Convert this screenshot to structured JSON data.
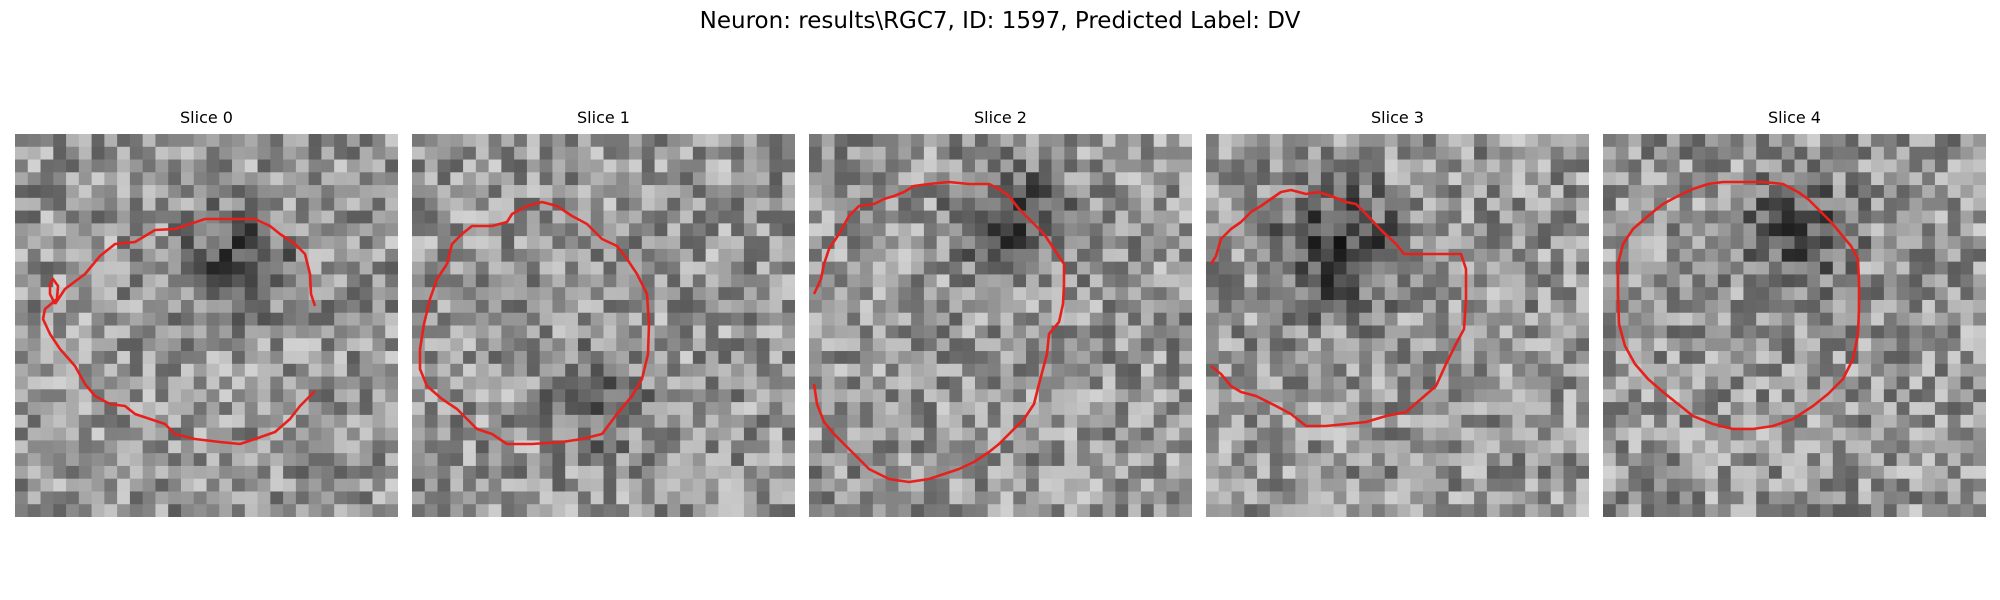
{
  "figure": {
    "title": "Neuron: results\\RGC7, ID: 1597, Predicted Label: DV"
  },
  "contour_color": "#e8201c",
  "panels": [
    {
      "title": "Slice 0",
      "seed": 11,
      "dark_spot": [
        0.58,
        0.33,
        0.22
      ]
    },
    {
      "title": "Slice 1",
      "seed": 23,
      "dark_spot": [
        0.48,
        0.7,
        0.18
      ]
    },
    {
      "title": "Slice 2",
      "seed": 37,
      "dark_spot": [
        0.52,
        0.22,
        0.22
      ]
    },
    {
      "title": "Slice 3",
      "seed": 51,
      "dark_spot": [
        0.35,
        0.3,
        0.25
      ]
    },
    {
      "title": "Slice 4",
      "seed": 67,
      "dark_spot": [
        0.5,
        0.25,
        0.22
      ]
    }
  ]
}
